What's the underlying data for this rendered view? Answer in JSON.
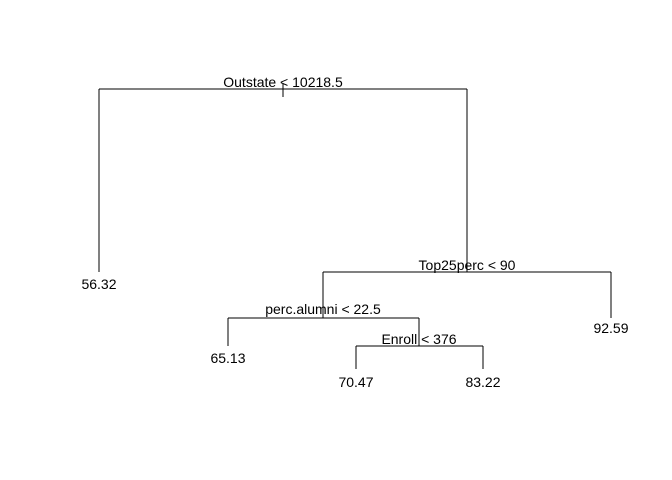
{
  "tree": {
    "splits": [
      {
        "id": "root",
        "label": "Outstate < 10218.5"
      },
      {
        "id": "n_top25",
        "label": "Top25perc < 90"
      },
      {
        "id": "n_alumni",
        "label": "perc.alumni < 22.5"
      },
      {
        "id": "n_enroll",
        "label": "Enroll < 376"
      }
    ],
    "leaves": [
      {
        "id": "leaf1",
        "value": "56.32"
      },
      {
        "id": "leaf2",
        "value": "65.13"
      },
      {
        "id": "leaf3",
        "value": "70.47"
      },
      {
        "id": "leaf4",
        "value": "83.22"
      },
      {
        "id": "leaf5",
        "value": "92.59"
      }
    ]
  }
}
